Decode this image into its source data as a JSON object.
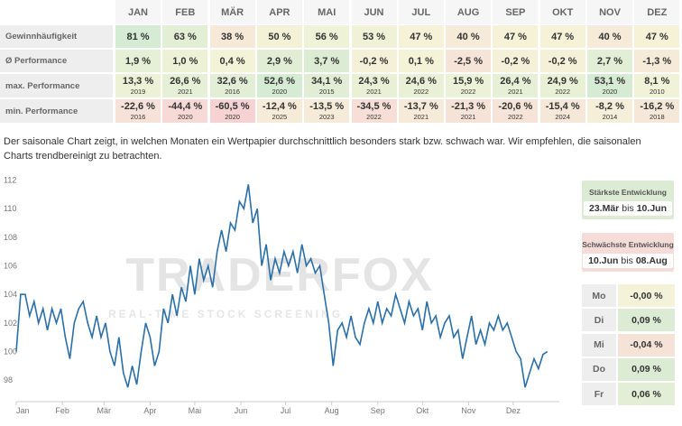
{
  "table": {
    "months": [
      "JAN",
      "FEB",
      "MÄR",
      "APR",
      "MAI",
      "JUN",
      "JUL",
      "AUG",
      "SEP",
      "OKT",
      "NOV",
      "DEZ"
    ],
    "rows": [
      {
        "label": "Gewinnhäufigkeit",
        "values": [
          "81 %",
          "63 %",
          "38 %",
          "50 %",
          "56 %",
          "53 %",
          "47 %",
          "40 %",
          "47 %",
          "47 %",
          "40 %",
          "47 %"
        ],
        "colors": [
          "#d6ebd3",
          "#e3efd5",
          "#f6e9d8",
          "#f3f2d7",
          "#eef2d6",
          "#f0f2d7",
          "#f5f2d8",
          "#f6ebd8",
          "#f5f2d8",
          "#f5f2d8",
          "#f6ebd8",
          "#f5f2d8"
        ]
      },
      {
        "label": "Ø Performance",
        "values": [
          "1,9 %",
          "1,0 %",
          "0,4 %",
          "2,9 %",
          "3,7 %",
          "-0,2 %",
          "0,1 %",
          "-2,5 %",
          "-0,2 %",
          "-0,2 %",
          "2,7 %",
          "-1,3 %"
        ],
        "colors": [
          "#e6f0d6",
          "#edf2d7",
          "#f3f3d8",
          "#e1eed5",
          "#dcecd4",
          "#f5f1d8",
          "#f4f3d8",
          "#f7e4d8",
          "#f5f1d8",
          "#f5f1d8",
          "#e2eed5",
          "#f6ead8"
        ]
      },
      {
        "label": "max. Performance",
        "values": [
          "13,3 %",
          "26,6 %",
          "32,6 %",
          "52,6 %",
          "34,1 %",
          "24,3 %",
          "24,6 %",
          "15,9 %",
          "26,4 %",
          "24,9 %",
          "53,1 %",
          "8,1 %"
        ],
        "years": [
          "2019",
          "2021",
          "2016",
          "2020",
          "2015",
          "2021",
          "2022",
          "2022",
          "2021",
          "2022",
          "2020",
          "2010"
        ],
        "colors": [
          "#edf2d7",
          "#e6f0d6",
          "#e2eed5",
          "#d6ebd3",
          "#e1eed5",
          "#e8f0d6",
          "#e8f0d6",
          "#ecf2d7",
          "#e6f0d6",
          "#e8f0d6",
          "#d6ebd3",
          "#f1f3d8"
        ]
      },
      {
        "label": "min. Performance",
        "values": [
          "-22,6 %",
          "-44,4 %",
          "-60,5 %",
          "-12,4 %",
          "-13,5 %",
          "-34,5 %",
          "-13,7 %",
          "-21,3 %",
          "-20,6 %",
          "-15,4 %",
          "-8,2 %",
          "-16,2 %"
        ],
        "years": [
          "2016",
          "2020",
          "2020",
          "2025",
          "2023",
          "2022",
          "2021",
          "2021",
          "2022",
          "2024",
          "2014",
          "2018"
        ],
        "colors": [
          "#f6e2d8",
          "#f7d9d6",
          "#f6d2d2",
          "#f6ebd8",
          "#f6ead8",
          "#f7dfd7",
          "#f6ead8",
          "#f6e3d8",
          "#f6e4d8",
          "#f6e8d8",
          "#f5eed8",
          "#f6e8d8"
        ]
      }
    ]
  },
  "description": "Der saisonale Chart zeigt, in welchen Monaten ein Wertpapier durchschnittlich besonders stark bzw. schwach war. Wir empfehlen, die saisonalen Charts trendbereinigt zu betrachten.",
  "chart_data": {
    "type": "line",
    "color": "#2a6fa8",
    "watermark": {
      "brand": "TRADERFOX",
      "tagline": "REAL-TIME STOCK SCREENING"
    },
    "xlim": [
      0,
      365
    ],
    "xticks": [
      {
        "value": 0,
        "label": "Jan"
      },
      {
        "value": 31,
        "label": "Feb"
      },
      {
        "value": 59,
        "label": "Mär"
      },
      {
        "value": 90,
        "label": "Apr"
      },
      {
        "value": 120,
        "label": "Mai"
      },
      {
        "value": 151,
        "label": "Jun"
      },
      {
        "value": 181,
        "label": "Jul"
      },
      {
        "value": 212,
        "label": "Aug"
      },
      {
        "value": 243,
        "label": "Sep"
      },
      {
        "value": 273,
        "label": "Okt"
      },
      {
        "value": 304,
        "label": "Nov"
      },
      {
        "value": 334,
        "label": "Dez"
      }
    ],
    "ylim": [
      96.5,
      112.6
    ],
    "yticks": [
      98,
      100,
      102,
      104,
      106,
      108,
      110,
      112
    ],
    "x": [
      0,
      3,
      6,
      9,
      12,
      15,
      18,
      21,
      24,
      27,
      30,
      33,
      36,
      39,
      42,
      45,
      48,
      51,
      54,
      57,
      60,
      63,
      66,
      69,
      72,
      75,
      78,
      81,
      84,
      87,
      90,
      93,
      96,
      99,
      102,
      105,
      108,
      111,
      114,
      117,
      120,
      123,
      126,
      129,
      132,
      135,
      138,
      141,
      144,
      147,
      150,
      153,
      156,
      159,
      162,
      165,
      168,
      171,
      174,
      177,
      180,
      183,
      186,
      189,
      192,
      195,
      198,
      201,
      204,
      207,
      210,
      213,
      216,
      219,
      222,
      225,
      228,
      231,
      234,
      237,
      240,
      243,
      246,
      249,
      252,
      255,
      258,
      261,
      264,
      267,
      270,
      273,
      276,
      279,
      282,
      285,
      288,
      291,
      294,
      297,
      300,
      303,
      306,
      309,
      312,
      315,
      318,
      321,
      324,
      327,
      330,
      333,
      336,
      339,
      342,
      345,
      348,
      351,
      354,
      357
    ],
    "values": [
      100,
      104,
      104,
      102.5,
      103.5,
      102,
      103,
      101.5,
      103,
      102,
      103,
      101,
      99.5,
      102,
      103,
      103.5,
      102,
      101,
      102.5,
      101,
      102,
      100,
      99,
      101,
      98.5,
      97.5,
      99,
      97.7,
      100,
      102,
      101,
      99,
      100,
      103,
      102,
      104,
      102.5,
      104.5,
      103.5,
      106,
      104,
      106.5,
      105,
      106,
      104.5,
      107,
      108.5,
      107,
      109,
      108.5,
      110.5,
      110,
      111.7,
      109,
      110,
      106,
      107.5,
      105,
      106.5,
      105.5,
      107,
      106,
      107,
      105.5,
      107.5,
      106,
      106.5,
      105.5,
      106,
      104,
      102,
      99,
      101.5,
      102,
      101,
      102.5,
      101,
      100.5,
      102,
      103,
      102,
      103.5,
      102,
      103,
      102.5,
      104,
      103,
      102,
      103.5,
      102.5,
      103,
      101.5,
      103.5,
      102,
      102.5,
      101,
      102,
      102.5,
      101,
      101.5,
      99.5,
      101,
      102.5,
      100.5,
      101.5,
      100.5,
      102,
      101.5,
      102.5,
      101.5,
      102,
      101,
      100,
      99.5,
      97.5,
      98.5,
      99.5,
      98.8,
      99.8,
      100
    ]
  },
  "sidebar": {
    "strongest": {
      "title": "Stärkste Entwicklung",
      "from": "23.Mär",
      "sep": "bis",
      "to": "10.Jun"
    },
    "weakest": {
      "title": "Schwächste Entwicklung",
      "from": "10.Jun",
      "sep": "bis",
      "to": "08.Aug"
    },
    "weekdays": [
      {
        "day": "Mo",
        "value": "-0,00 %",
        "color": "#f4f2d8"
      },
      {
        "day": "Di",
        "value": "0,09 %",
        "color": "#dcecd4"
      },
      {
        "day": "Mi",
        "value": "-0,04 %",
        "color": "#f6e3d8"
      },
      {
        "day": "Do",
        "value": "0,09 %",
        "color": "#dcecd4"
      },
      {
        "day": "Fr",
        "value": "0,06 %",
        "color": "#e2eed5"
      }
    ]
  }
}
